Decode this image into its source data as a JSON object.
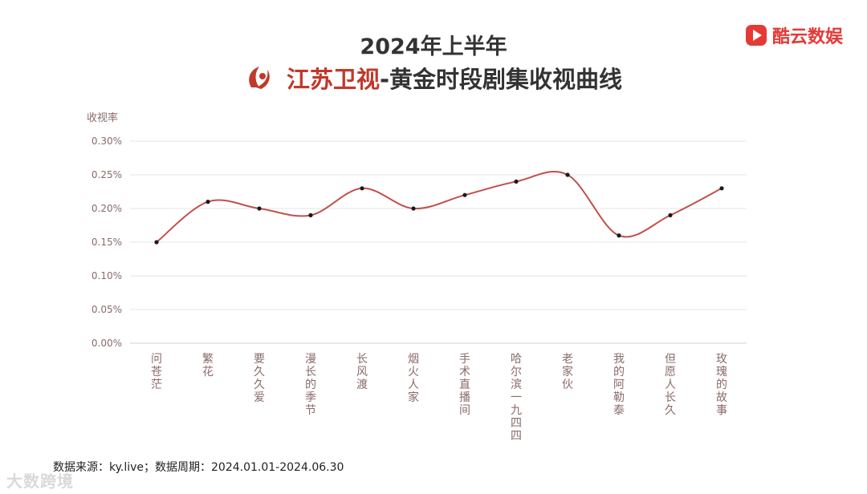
{
  "header": {
    "title_line1": "2024年上半年",
    "channel_name": "江苏卫视",
    "title_rest": "-黄金时段剧集收视曲线"
  },
  "brand": {
    "name": "酷云数娱",
    "accent": "#e53935"
  },
  "footer": {
    "source": "数据来源：ky.live；数据周期：2024.01.01-2024.06.30"
  },
  "watermark": {
    "text": "大数跨境"
  },
  "chart_data": {
    "type": "line",
    "ylabel": "收视率",
    "ylim": [
      0,
      0.3
    ],
    "yticks": [
      "0.00%",
      "0.05%",
      "0.10%",
      "0.15%",
      "0.20%",
      "0.25%",
      "0.30%"
    ],
    "grid": true,
    "line_color": "#c0504d",
    "categories": [
      "问苍茫",
      "繁花",
      "要久久爱",
      "漫长的季节",
      "长风渡",
      "烟火人家",
      "手术直播间",
      "哈尔滨一九四四",
      "老家伙",
      "我的阿勒泰",
      "但愿人长久",
      "玫瑰的故事"
    ],
    "values": [
      0.15,
      0.21,
      0.2,
      0.19,
      0.23,
      0.2,
      0.22,
      0.24,
      0.25,
      0.16,
      0.19,
      0.23
    ]
  }
}
